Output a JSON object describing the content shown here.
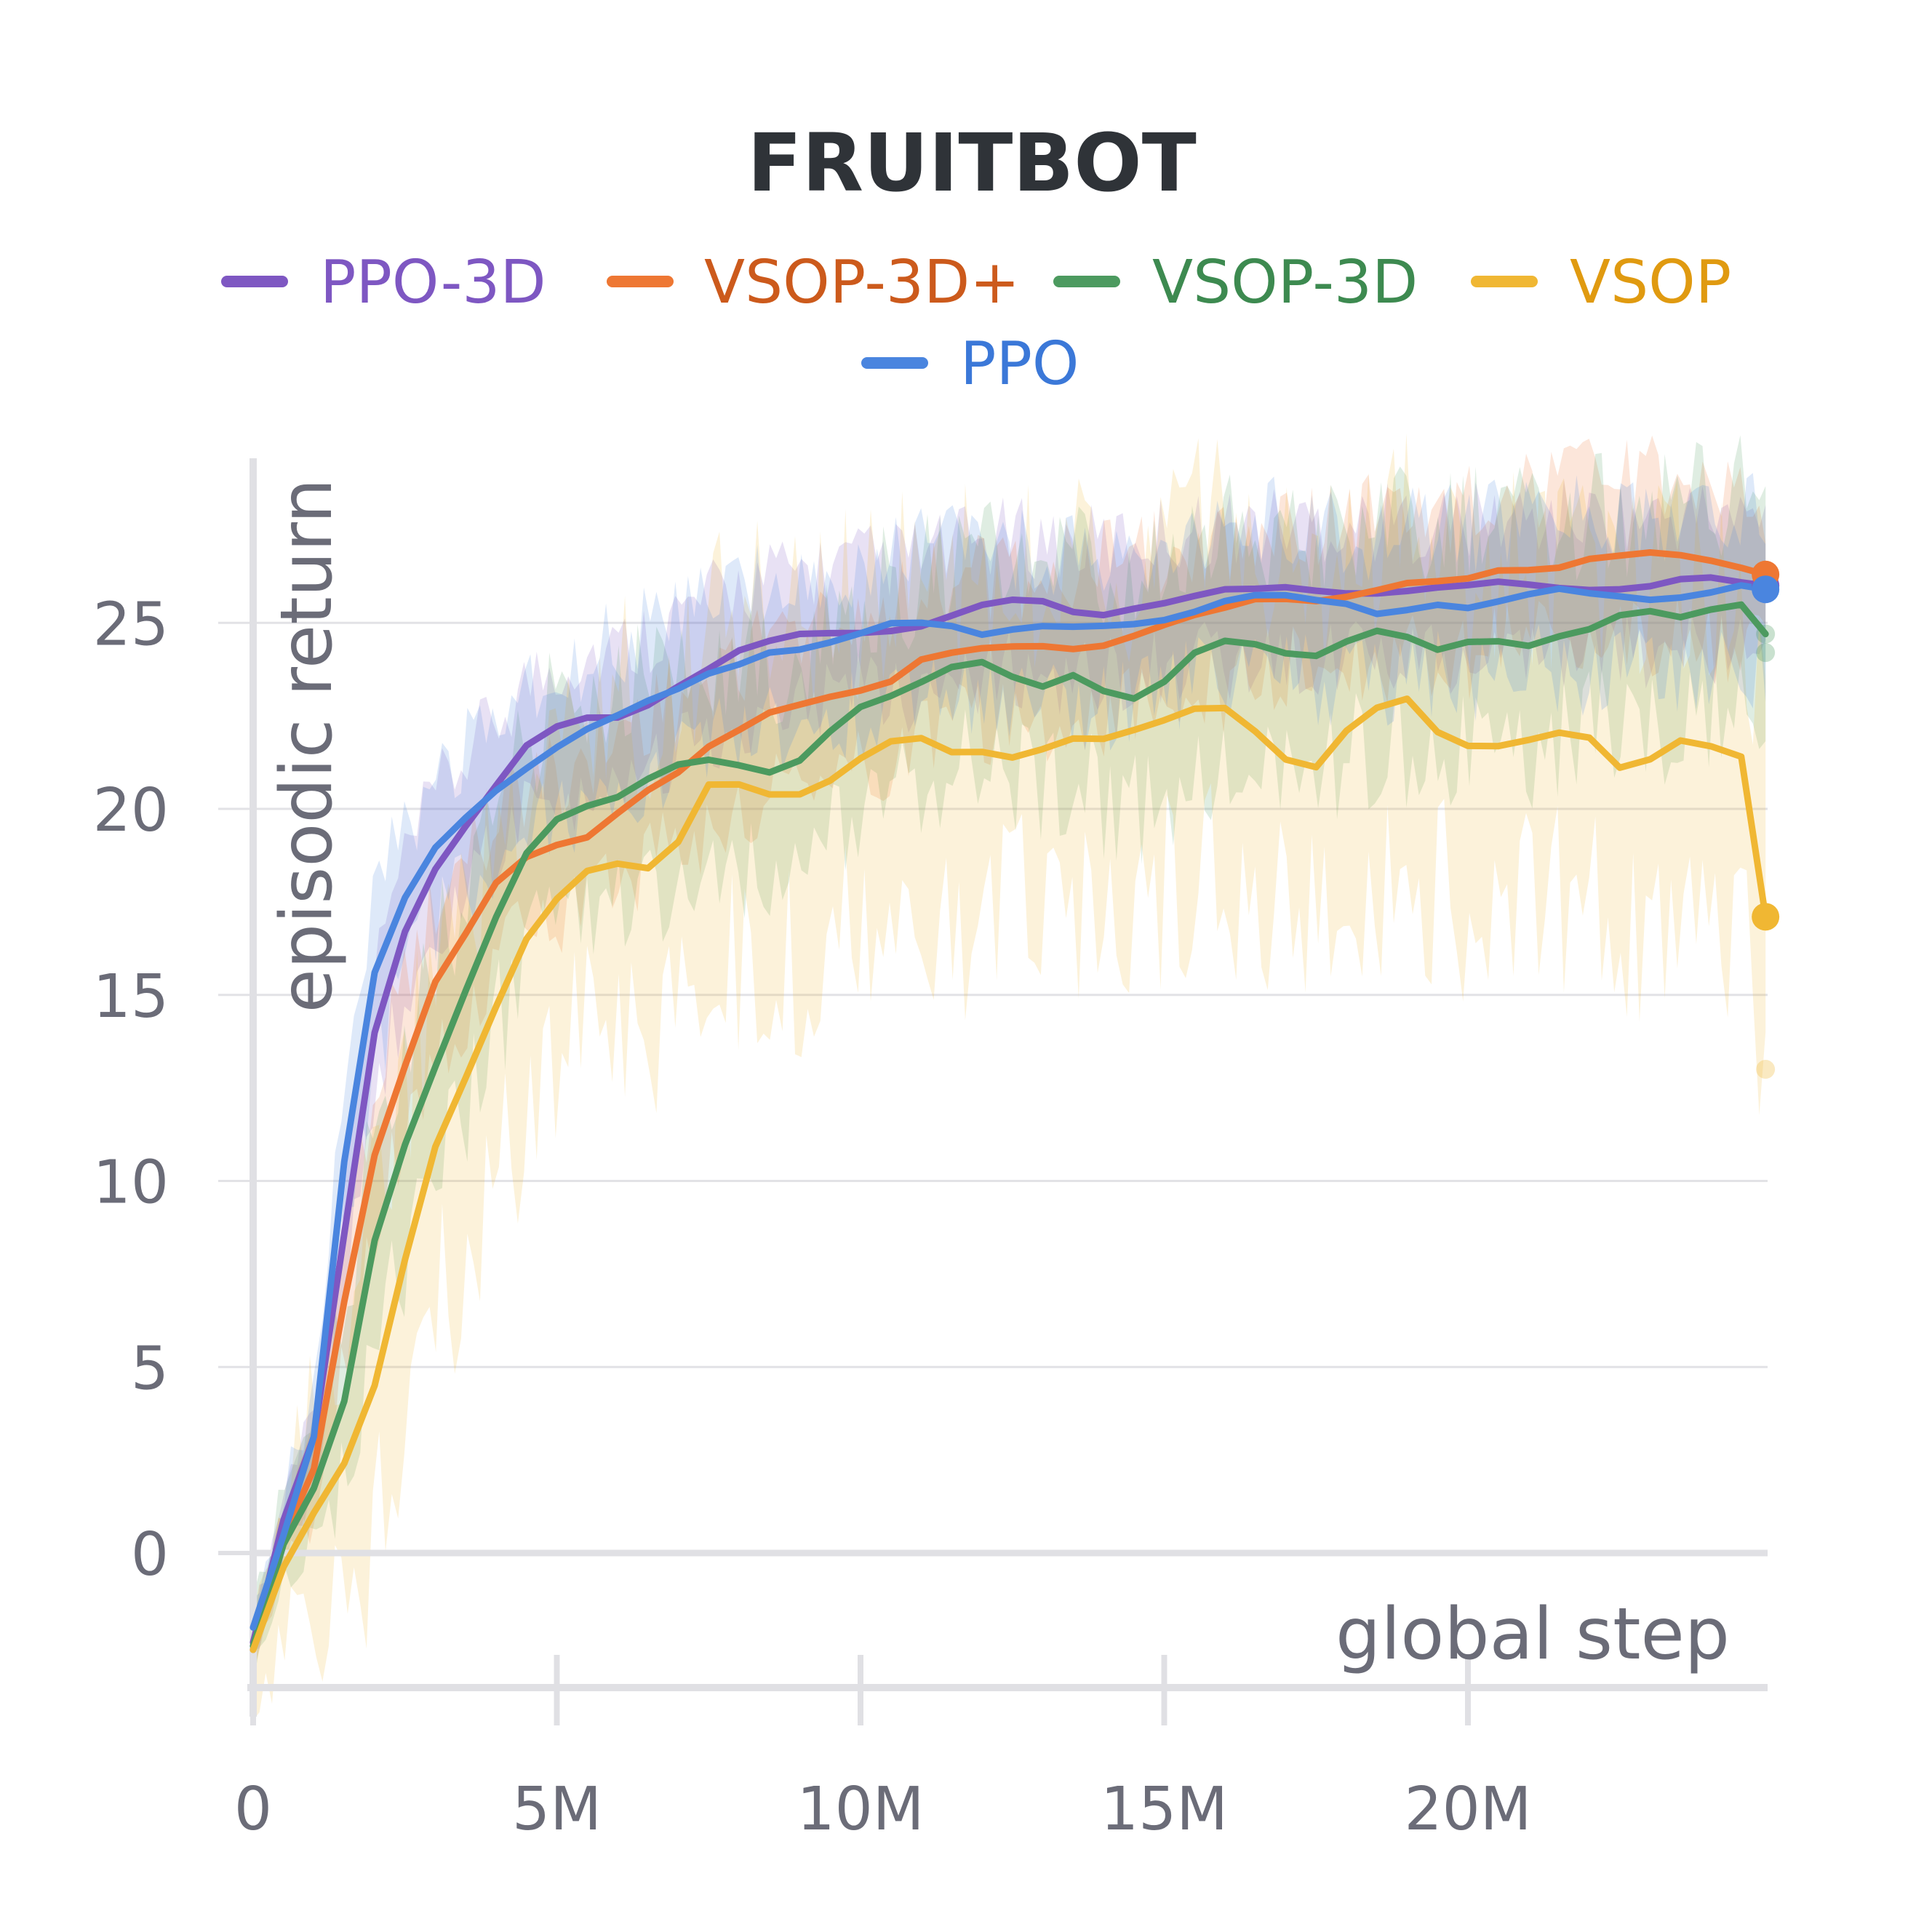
{
  "chart_data": {
    "type": "line",
    "title": "FRUITBOT",
    "xlabel": "global step",
    "ylabel": "episodic return",
    "xlim": [
      0,
      25000000
    ],
    "ylim": [
      -3.5,
      29.5
    ],
    "xticks": [
      {
        "value": 0,
        "label": "0"
      },
      {
        "value": 5000000,
        "label": "5M"
      },
      {
        "value": 10000000,
        "label": "10M"
      },
      {
        "value": 15000000,
        "label": "15M"
      },
      {
        "value": 20000000,
        "label": "20M"
      }
    ],
    "yticks": [
      {
        "value": 0,
        "label": "0"
      },
      {
        "value": 5,
        "label": "5"
      },
      {
        "value": 10,
        "label": "10"
      },
      {
        "value": 15,
        "label": "15"
      },
      {
        "value": 20,
        "label": "20"
      },
      {
        "value": 25,
        "label": "25"
      }
    ],
    "legend_position": "top-center",
    "grid": true,
    "x": [
      0,
      0.5,
      1,
      1.5,
      2,
      2.5,
      3,
      3.5,
      4,
      4.5,
      5,
      5.5,
      6,
      6.5,
      7,
      7.5,
      8,
      8.5,
      9,
      9.5,
      10,
      10.5,
      11,
      11.5,
      12,
      12.5,
      13,
      13.5,
      14,
      14.5,
      15,
      15.5,
      16,
      16.5,
      17,
      17.5,
      18,
      18.5,
      19,
      19.5,
      20,
      20.5,
      21,
      21.5,
      22,
      22.5,
      23,
      23.5,
      24,
      24.5,
      24.9
    ],
    "x_unit": "M",
    "series": [
      {
        "name": "PPO-3D",
        "color": "#7e57c2",
        "label_color": "#7e57c2",
        "values": [
          -2.4,
          0.8,
          3.0,
          8.5,
          14.0,
          16.8,
          18.5,
          19.6,
          20.6,
          21.6,
          22.1,
          22.4,
          22.5,
          22.9,
          23.4,
          23.8,
          24.2,
          24.4,
          24.6,
          24.7,
          24.8,
          24.9,
          25.0,
          25.2,
          25.4,
          25.5,
          25.5,
          25.3,
          25.3,
          25.5,
          25.6,
          25.7,
          25.8,
          25.8,
          25.9,
          25.9,
          25.9,
          25.9,
          25.9,
          25.9,
          25.9,
          26.0,
          26.0,
          26.0,
          26.0,
          26.0,
          26.0,
          26.1,
          26.1,
          26.0,
          26.0
        ],
        "band": 1.6
      },
      {
        "name": "VSOP-3D+",
        "color": "#ee7733",
        "label_color": "#cc5a1c",
        "values": [
          -2.6,
          0.3,
          2.2,
          6.8,
          10.8,
          13.2,
          15.4,
          16.6,
          17.9,
          18.6,
          19.0,
          19.3,
          20.0,
          20.6,
          21.0,
          21.6,
          22.0,
          22.5,
          22.8,
          23.1,
          23.3,
          23.5,
          24.0,
          24.1,
          24.2,
          24.3,
          24.4,
          24.4,
          24.5,
          24.7,
          24.9,
          25.1,
          25.3,
          25.6,
          25.7,
          25.7,
          25.8,
          25.9,
          26.0,
          26.0,
          26.1,
          26.4,
          26.5,
          26.6,
          26.8,
          26.8,
          26.8,
          26.7,
          26.6,
          26.5,
          26.3
        ],
        "band": 1.8
      },
      {
        "name": "VSOP-3D",
        "color": "#4c9a5f",
        "label_color": "#3d8a50",
        "values": [
          -2.5,
          0.2,
          1.8,
          4.2,
          8.5,
          11.0,
          13.0,
          15.0,
          17.0,
          18.8,
          19.8,
          20.2,
          20.4,
          20.8,
          21.1,
          21.2,
          21.1,
          21.0,
          21.4,
          22.2,
          22.8,
          23.0,
          23.3,
          23.7,
          23.9,
          23.6,
          23.4,
          23.7,
          23.2,
          22.9,
          23.3,
          24.1,
          24.5,
          24.5,
          24.3,
          24.2,
          24.5,
          24.7,
          24.5,
          24.2,
          24.5,
          24.6,
          24.5,
          24.7,
          24.8,
          25.1,
          25.2,
          25.1,
          25.4,
          25.6,
          24.7
        ],
        "band": 2.6
      },
      {
        "name": "VSOP",
        "color": "#f0b733",
        "label_color": "#e09a10",
        "values": [
          -2.6,
          -0.3,
          1.2,
          2.5,
          4.5,
          7.8,
          10.8,
          12.7,
          14.7,
          16.6,
          17.7,
          18.4,
          18.5,
          18.3,
          19.0,
          20.6,
          20.7,
          20.5,
          20.5,
          20.8,
          21.3,
          21.7,
          21.8,
          21.5,
          21.6,
          21.5,
          21.7,
          21.9,
          21.8,
          22.0,
          22.3,
          22.7,
          22.8,
          22.2,
          21.4,
          21.1,
          22.0,
          22.6,
          22.9,
          22.1,
          21.8,
          21.8,
          21.9,
          22.0,
          21.8,
          21.0,
          21.3,
          21.9,
          21.8,
          21.5,
          17.1
        ],
        "band": 4.0
      },
      {
        "name": "PPO",
        "color": "#4a85df",
        "label_color": "#3b78d8",
        "values": [
          -2.0,
          0.6,
          3.2,
          10.5,
          15.5,
          17.5,
          18.9,
          19.8,
          20.6,
          21.2,
          21.7,
          22.1,
          22.4,
          22.8,
          23.2,
          23.7,
          24.0,
          24.3,
          24.3,
          24.4,
          24.6,
          24.9,
          25.0,
          25.0,
          24.8,
          24.9,
          24.9,
          24.8,
          24.8,
          24.9,
          25.1,
          25.4,
          25.7,
          25.8,
          25.7,
          25.5,
          25.4,
          25.2,
          25.4,
          25.6,
          25.5,
          25.6,
          25.7,
          25.8,
          25.7,
          25.7,
          25.7,
          25.8,
          25.9,
          26.0,
          25.9
        ],
        "band": 1.8
      }
    ],
    "end_markers": [
      {
        "series": "PPO-3D",
        "value": 26.0
      },
      {
        "series": "VSOP-3D+",
        "value": 26.3
      },
      {
        "series": "VSOP-3D",
        "value": 24.7
      },
      {
        "series": "VSOP-3D",
        "value": 24.2
      },
      {
        "series": "VSOP",
        "value": 17.1
      },
      {
        "series": "VSOP",
        "value": 13.0
      },
      {
        "series": "PPO",
        "value": 25.9
      }
    ]
  }
}
